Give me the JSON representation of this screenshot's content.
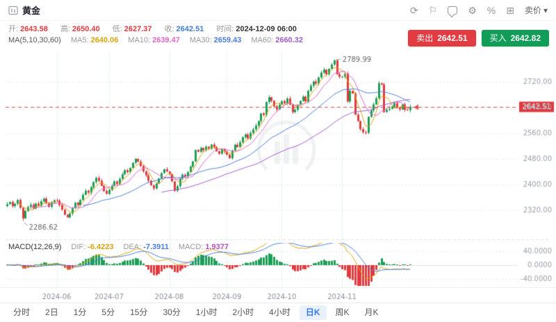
{
  "header": {
    "title": "黄金",
    "sell_price_menu": "卖价",
    "caret": "▾",
    "icons": [
      {
        "name": "refresh",
        "glyph": "⟳"
      },
      {
        "name": "flag",
        "glyph": "⚐"
      },
      {
        "name": "comment",
        "glyph": ""
      },
      {
        "name": "gear",
        "glyph": "⚙"
      },
      {
        "name": "percent",
        "glyph": "%"
      },
      {
        "name": "grid",
        "glyph": "⊞"
      }
    ]
  },
  "quote": {
    "fields": [
      {
        "label": "开:",
        "value": "2643.58",
        "color": "#e0393e"
      },
      {
        "label": "高:",
        "value": "2650.40",
        "color": "#e0393e"
      },
      {
        "label": "低:",
        "value": "2627.37",
        "color": "#e0393e"
      },
      {
        "label": "收:",
        "value": "2642.51",
        "color": "#3f7fd6"
      },
      {
        "label": "时间:",
        "value": "2024-12-09 06:00",
        "color": "#333333"
      }
    ]
  },
  "ma_legend": {
    "prefix": "MA(5,10,30,60)",
    "items": [
      {
        "label": "MA5:",
        "value": "2640.06",
        "color": "#d9a40e"
      },
      {
        "label": "MA10:",
        "value": "2639.47",
        "color": "#e066c9"
      },
      {
        "label": "MA30:",
        "value": "2659.43",
        "color": "#4a7de0"
      },
      {
        "label": "MA60:",
        "value": "2660.32",
        "color": "#a05ccc"
      }
    ]
  },
  "trade": {
    "sell_label": "卖出",
    "sell_price": "2642.51",
    "sell_color": "#e23b41",
    "buy_label": "买入",
    "buy_price": "2642.82",
    "buy_color": "#0f9d58"
  },
  "macd_header": {
    "label": "MACD(12,26,9)",
    "items": [
      {
        "label": "DIF:",
        "value": "-6.4223",
        "color": "#d9a40e"
      },
      {
        "label": "DEA:",
        "value": "-7.3911",
        "color": "#4a7de0"
      },
      {
        "label": "MACD:",
        "value": "1.9377",
        "color": "#b052c4"
      }
    ]
  },
  "toolbar": {
    "periods": [
      "分时",
      "2日",
      "1分",
      "5分",
      "15分",
      "30分",
      "1小时",
      "2小时",
      "4小时",
      "日K",
      "周K",
      "月K"
    ],
    "selected": "日K",
    "selected_color": "#3478f6"
  },
  "chart_data": {
    "type": "candlestick+macd",
    "title": "黄金 日K",
    "current_price": 2642.51,
    "high_annotation": 2789.99,
    "low_annotation": 2286.62,
    "up_color": "#1d9d55",
    "down_color": "#e0393e",
    "price_line_color": "#e25050",
    "y_axis_labels": [
      "2720.00",
      "2640.00",
      "2560.00",
      "2480.00",
      "2400.00",
      "2320.00"
    ],
    "y_gridline_values": [
      2720,
      2640,
      2560,
      2480,
      2400,
      2320
    ],
    "macd_axis_labels": [
      "40.0000",
      "0.0000",
      "-40.0000"
    ],
    "ma_periods": [
      5,
      10,
      30,
      60
    ],
    "months": [
      {
        "label": "2024-06",
        "index": 19
      },
      {
        "label": "2024-07",
        "index": 39
      },
      {
        "label": "2024-08",
        "index": 62
      },
      {
        "label": "2024-09",
        "index": 84
      },
      {
        "label": "2024-10",
        "index": 105
      },
      {
        "label": "2024-11",
        "index": 128
      }
    ],
    "closes": [
      2339,
      2346,
      2333,
      2340,
      2352,
      2328,
      2295,
      2318,
      2330,
      2337,
      2325,
      2341,
      2334,
      2348,
      2356,
      2342,
      2331,
      2344,
      2351,
      2350,
      2336,
      2322,
      2306,
      2298,
      2310,
      2326,
      2344,
      2336,
      2352,
      2368,
      2381,
      2375,
      2392,
      2408,
      2421,
      2412,
      2396,
      2380,
      2371,
      2383,
      2396,
      2410,
      2402,
      2418,
      2432,
      2445,
      2439,
      2452,
      2468,
      2480,
      2472,
      2458,
      2441,
      2429,
      2412,
      2398,
      2388,
      2403,
      2419,
      2436,
      2448,
      2441,
      2433,
      2410,
      2381,
      2395,
      2418,
      2431,
      2426,
      2439,
      2456,
      2472,
      2508,
      2502,
      2514,
      2507,
      2518,
      2512,
      2525,
      2517,
      2504,
      2496,
      2511,
      2503,
      2493,
      2482,
      2506,
      2524,
      2517,
      2532,
      2548,
      2556,
      2544,
      2561,
      2572,
      2584,
      2598,
      2622,
      2617,
      2657,
      2672,
      2661,
      2644,
      2634,
      2649,
      2660,
      2653,
      2668,
      2649,
      2626,
      2633,
      2649,
      2661,
      2674,
      2659,
      2692,
      2708,
      2721,
      2715,
      2734,
      2749,
      2758,
      2744,
      2761,
      2774,
      2787,
      2744,
      2736,
      2736,
      2746,
      2659,
      2692,
      2684,
      2618,
      2598,
      2573,
      2563,
      2561,
      2611,
      2631,
      2650,
      2669,
      2716,
      2712,
      2626,
      2633,
      2636,
      2643,
      2654,
      2639,
      2634,
      2650,
      2633,
      2632,
      2642.51
    ]
  }
}
